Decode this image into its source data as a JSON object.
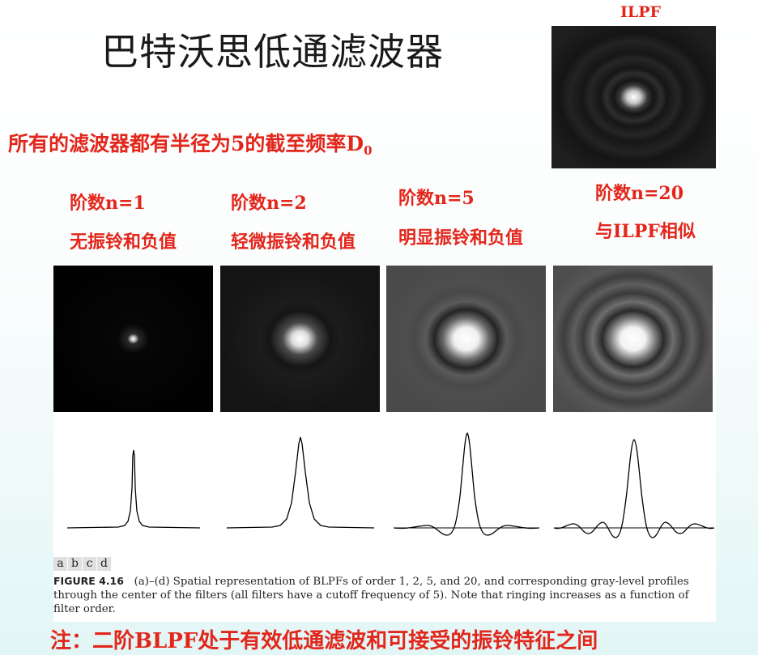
{
  "title": "巴特沃思低通滤波器",
  "ilpf": {
    "label": "ILPF"
  },
  "subtitle": {
    "text": "所有的滤波器都有半径为5的截至频率D",
    "subscript": "0"
  },
  "panels": [
    {
      "order_label": "阶数n=1",
      "desc": "无振铃和负值"
    },
    {
      "order_label": "阶数n=2",
      "desc": "轻微振铃和负值"
    },
    {
      "order_label": "阶数n=5",
      "desc": "明显振铃和负值"
    },
    {
      "order_label": "阶数n=20",
      "desc": "与ILPF相似"
    }
  ],
  "figure": {
    "sublabels": [
      "a",
      "b",
      "c",
      "d"
    ],
    "caption_label": "FIGURE 4.16",
    "caption_text": "(a)–(d) Spatial representation of BLPFs of order 1, 2, 5, and 20, and corresponding gray-level profiles through the center of the filters (all filters have a cutoff frequency of 5). Note that ringing increases as a function of filter order."
  },
  "note": "注：二阶BLPF处于有效低通滤波和可接受的振铃特征之间",
  "colors": {
    "accent": "#e3261b",
    "title": "#1a1a1a"
  }
}
